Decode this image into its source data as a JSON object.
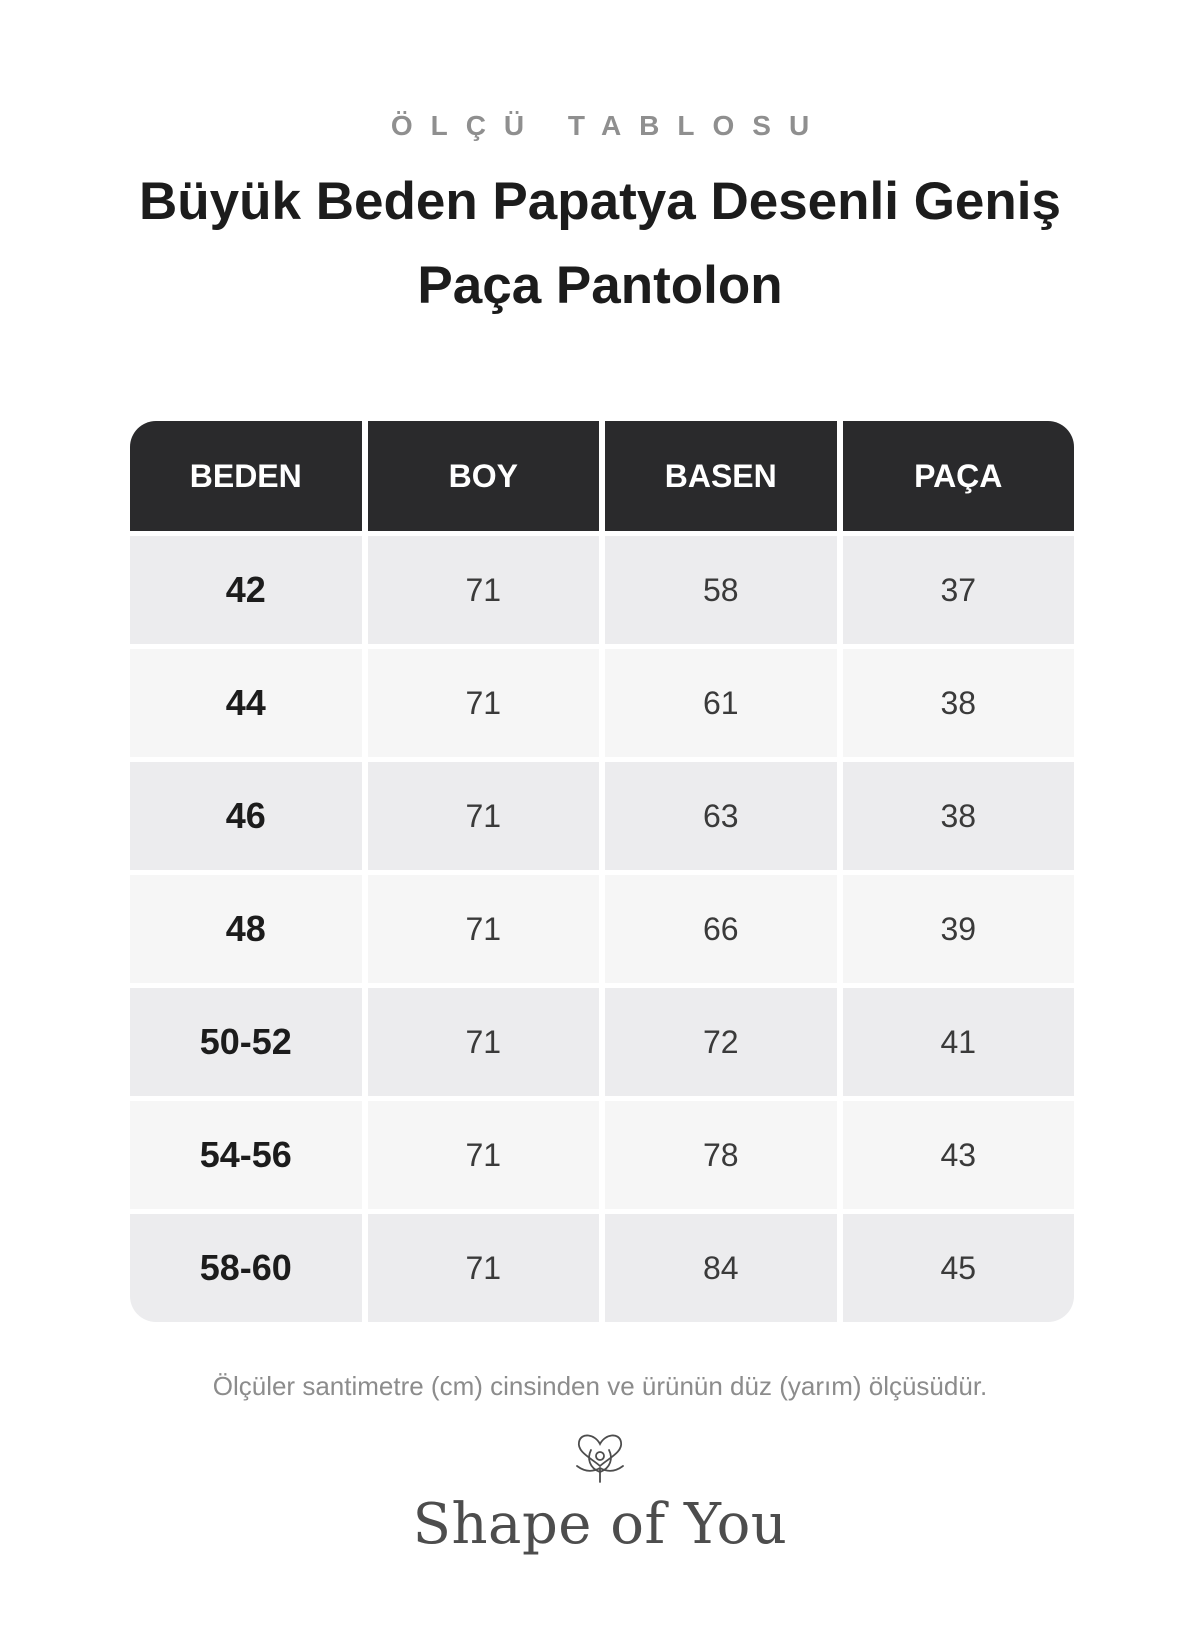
{
  "header": {
    "eyebrow": "ÖLÇÜ TABLOSU",
    "title": "Büyük Beden Papatya Desenli Geniş Paça Pantolon"
  },
  "table": {
    "columns": [
      "BEDEN",
      "BOY",
      "BASEN",
      "PAÇA"
    ],
    "rows": [
      [
        "42",
        "71",
        "58",
        "37"
      ],
      [
        "44",
        "71",
        "61",
        "38"
      ],
      [
        "46",
        "71",
        "63",
        "38"
      ],
      [
        "48",
        "71",
        "66",
        "39"
      ],
      [
        "50-52",
        "71",
        "72",
        "41"
      ],
      [
        "54-56",
        "71",
        "78",
        "43"
      ],
      [
        "58-60",
        "71",
        "84",
        "45"
      ]
    ]
  },
  "footer": {
    "note": "Ölçüler santimetre (cm) cinsinden ve ürünün düz (yarım) ölçüsüdür.",
    "brand": "Shape of You",
    "logo_icon": "heart-knot-icon"
  },
  "colors": {
    "header_bg": "#2a2a2c",
    "row_odd": "#ececee",
    "row_even": "#f6f6f6",
    "title": "#1c1c1c",
    "muted": "#8c8c8c"
  }
}
